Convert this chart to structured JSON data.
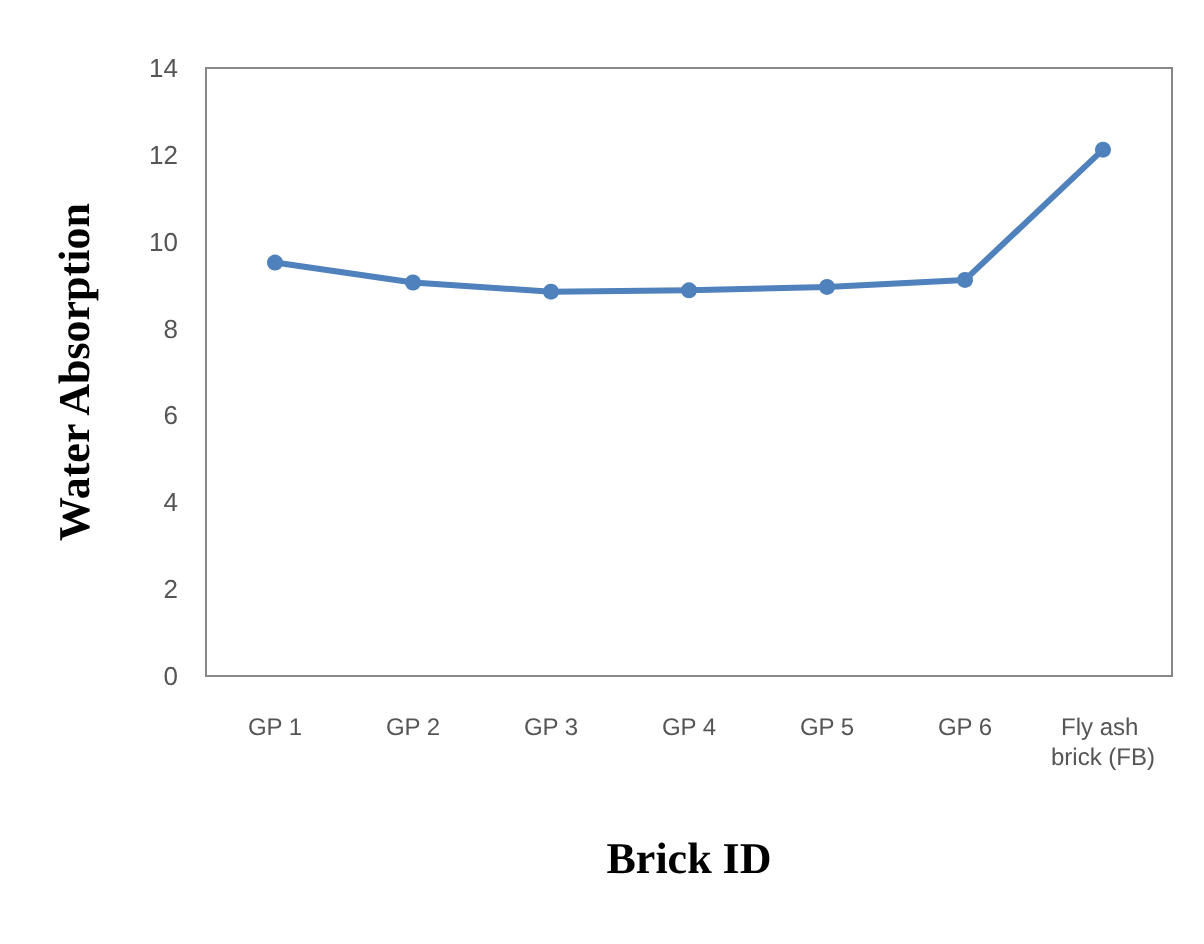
{
  "chart_data": {
    "type": "line",
    "xlabel": "Brick ID",
    "ylabel": "Water Absorption",
    "categories": [
      "GP 1",
      "GP 2",
      "GP 3",
      "GP 4",
      "GP 5",
      "GP 6",
      "Fly ash brick (FB)"
    ],
    "series": [
      {
        "color": "#4f81bd",
        "values": [
          9.52,
          9.06,
          8.85,
          8.88,
          8.96,
          9.12,
          12.12
        ]
      }
    ],
    "ylim": [
      0,
      14
    ],
    "yticks": [
      0,
      2,
      4,
      6,
      8,
      10,
      12,
      14
    ],
    "grid": false,
    "marker": "circle",
    "line_style": "solid"
  }
}
